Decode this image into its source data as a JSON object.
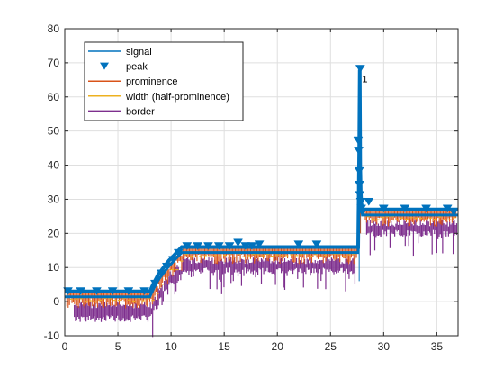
{
  "chart_data": {
    "type": "line",
    "title": "",
    "xlabel": "",
    "ylabel": "",
    "xlim": [
      0,
      37
    ],
    "ylim": [
      -10,
      80
    ],
    "x_ticks": [
      0,
      5,
      10,
      15,
      20,
      25,
      30,
      35
    ],
    "y_ticks": [
      -10,
      0,
      10,
      20,
      30,
      40,
      50,
      60,
      70,
      80
    ],
    "grid": true,
    "legend_position": "top-left",
    "legend": [
      {
        "label": "signal",
        "style": "line",
        "color": "#0072BD"
      },
      {
        "label": "peak",
        "style": "triangle-down",
        "color": "#0072BD"
      },
      {
        "label": "prominence",
        "style": "line",
        "color": "#D95319"
      },
      {
        "label": "width (half-prominence)",
        "style": "line",
        "color": "#EDB120"
      },
      {
        "label": "border",
        "style": "line",
        "color": "#7E2F8E"
      }
    ],
    "annotations": [
      {
        "text": "1",
        "x": 27.8,
        "y": 68
      }
    ],
    "series": [
      {
        "name": "signal",
        "color": "#0072BD",
        "x": [
          0,
          8,
          8.3,
          8.8,
          9.3,
          9.8,
          10.4,
          11,
          27.6,
          27.7,
          27.75,
          27.8,
          27.85,
          27.9,
          28,
          28.3,
          37
        ],
        "values": [
          3,
          3,
          5,
          8,
          10,
          12,
          14,
          16,
          16,
          45,
          68,
          40,
          32,
          29,
          27,
          27,
          27
        ]
      },
      {
        "name": "peak",
        "color": "#0072BD",
        "x": [
          0.3,
          1.5,
          3.0,
          4.5,
          6.0,
          7.5,
          8.5,
          9.1,
          9.6,
          10.2,
          10.7,
          11.5,
          12.5,
          13.5,
          14.5,
          15.5,
          16.3,
          17.0,
          17.6,
          18.3,
          22.0,
          23.7,
          27.6,
          27.65,
          27.7,
          27.72,
          27.75,
          27.8,
          27.85,
          27.9,
          28.0,
          28.6,
          30.0,
          32.0,
          34.0,
          36.0,
          36.6
        ],
        "values": [
          2.8,
          2.8,
          2.8,
          2.8,
          2.8,
          2.8,
          5,
          8,
          10,
          12,
          14,
          16,
          16,
          16,
          16,
          16,
          17,
          16,
          16,
          16.5,
          16.5,
          16.5,
          47,
          44,
          38,
          34,
          31,
          68,
          29,
          27,
          26,
          29,
          27,
          27,
          27,
          27,
          26
        ]
      }
    ]
  }
}
